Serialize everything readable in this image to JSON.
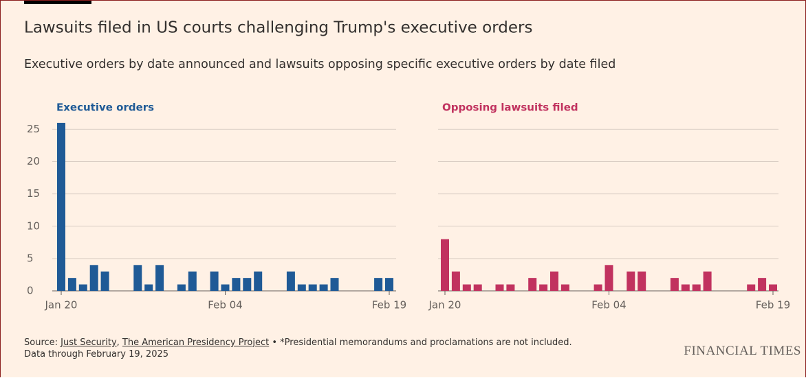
{
  "title": "Lawsuits filed in US courts challenging Trump's executive orders",
  "subtitle": "Executive orders by date announced and lawsuits opposing specific executive orders by date filed",
  "source_parts": [
    "Source:",
    "Just Security",
    ",",
    "The American Presidency Project",
    "• *Presidential memorandums and proclamations are not included. Data through February 19, 2025"
  ],
  "brand": "FINANCIAL TIMES",
  "chart_data": [
    {
      "type": "bar",
      "title": "Executive orders",
      "color": "#1f5a96",
      "categories": [
        "Jan 20",
        null,
        null,
        null,
        null,
        null,
        null,
        null,
        null,
        null,
        null,
        null,
        null,
        null,
        null,
        "Feb 04",
        null,
        null,
        null,
        null,
        null,
        null,
        null,
        null,
        null,
        null,
        null,
        null,
        null,
        null,
        "Feb 19"
      ],
      "values": [
        26,
        2,
        1,
        4,
        3,
        0,
        0,
        4,
        1,
        4,
        0,
        1,
        3,
        0,
        3,
        1,
        2,
        2,
        3,
        0,
        0,
        3,
        1,
        1,
        1,
        2,
        0,
        0,
        0,
        2,
        2
      ],
      "ylim": [
        0,
        26
      ],
      "yticks": [
        0,
        5,
        10,
        15,
        20,
        25
      ],
      "grid": true
    },
    {
      "type": "bar",
      "title": "Opposing lawsuits filed",
      "color": "#c1325f",
      "categories": [
        "Jan 20",
        null,
        null,
        null,
        null,
        null,
        null,
        null,
        null,
        null,
        null,
        null,
        null,
        null,
        null,
        "Feb 04",
        null,
        null,
        null,
        null,
        null,
        null,
        null,
        null,
        null,
        null,
        null,
        null,
        null,
        null,
        "Feb 19"
      ],
      "values": [
        8,
        3,
        1,
        1,
        0,
        1,
        1,
        0,
        2,
        1,
        3,
        1,
        0,
        0,
        1,
        4,
        0,
        3,
        3,
        0,
        0,
        2,
        1,
        1,
        3,
        0,
        0,
        0,
        1,
        2,
        1
      ],
      "ylim": [
        0,
        26
      ],
      "yticks": [
        0,
        5,
        10,
        15,
        20,
        25
      ],
      "grid": true
    }
  ]
}
